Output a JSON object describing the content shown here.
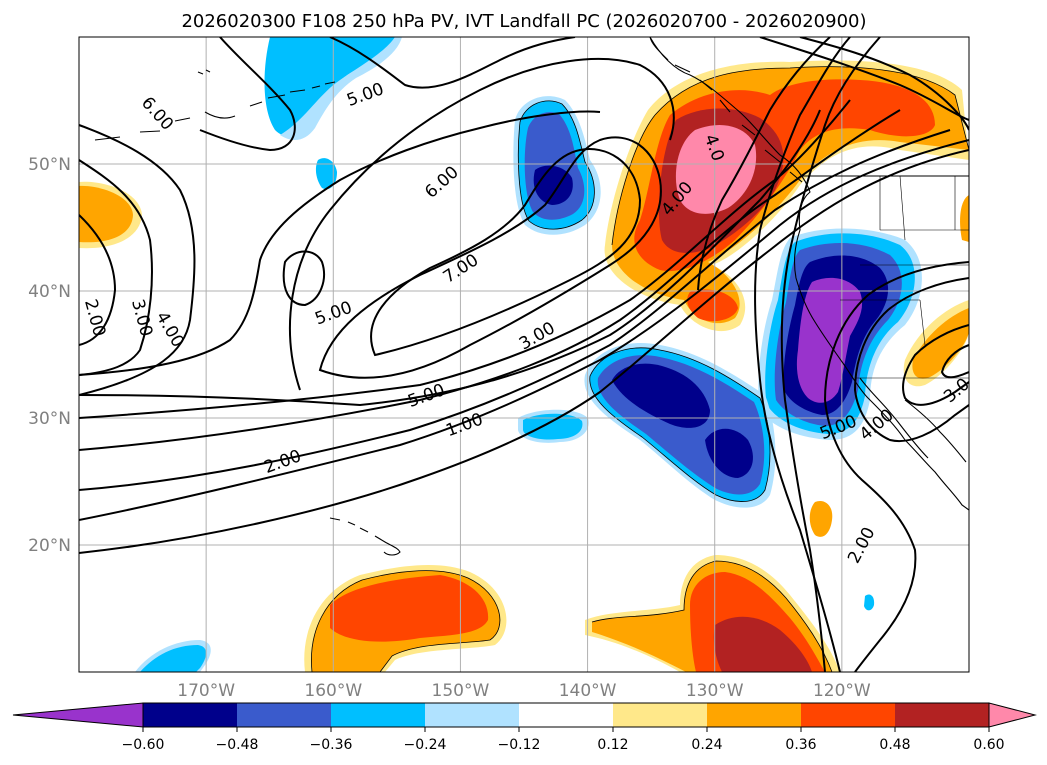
{
  "title": "2026020300 F108 250 hPa PV, IVT Landfall PC (2026020700 - 2026020900)",
  "map": {
    "lon_range": [
      -180,
      -110
    ],
    "lat_range": [
      10,
      60
    ],
    "lon_ticks": [
      {
        "value": -170,
        "label": "170°W"
      },
      {
        "value": -160,
        "label": "160°W"
      },
      {
        "value": -150,
        "label": "150°W"
      },
      {
        "value": -140,
        "label": "140°W"
      },
      {
        "value": -130,
        "label": "130°W"
      },
      {
        "value": -120,
        "label": "120°W"
      }
    ],
    "lat_ticks": [
      {
        "value": 20,
        "label": "20°N"
      },
      {
        "value": 30,
        "label": "30°N"
      },
      {
        "value": 40,
        "label": "40°N"
      },
      {
        "value": 50,
        "label": "50°N"
      }
    ],
    "gridlines": true,
    "coastlines": true
  },
  "colorbar": {
    "orientation": "horizontal",
    "extend": "both",
    "levels": [
      "-0.60",
      "-0.48",
      "-0.36",
      "-0.24",
      "-0.12",
      "0.12",
      "0.24",
      "0.36",
      "0.48",
      "0.60"
    ],
    "colors": [
      "#9933cc",
      "#00008b",
      "#3a5bcc",
      "#00bfff",
      "#b0e2ff",
      "#ffffff",
      "#ffe88a",
      "#ffa500",
      "#ff4500",
      "#b22222",
      "#ff88aa"
    ]
  },
  "contour_labels": [
    {
      "text": "6.00",
      "lon": -173.8,
      "lat": 54.0,
      "angle": 48
    },
    {
      "text": "5.00",
      "lon": -157.5,
      "lat": 55.5,
      "angle": -20
    },
    {
      "text": "6.00",
      "lon": -151.5,
      "lat": 48.6,
      "angle": -42
    },
    {
      "text": "7.00",
      "lon": -150.0,
      "lat": 41.8,
      "angle": -33
    },
    {
      "text": "5.00",
      "lon": -160.0,
      "lat": 38.3,
      "angle": -20
    },
    {
      "text": "3.00",
      "lon": -144.0,
      "lat": 36.5,
      "angle": -30
    },
    {
      "text": "5.00",
      "lon": -152.7,
      "lat": 31.8,
      "angle": -20
    },
    {
      "text": "1.00",
      "lon": -149.7,
      "lat": 29.5,
      "angle": -20
    },
    {
      "text": "2.00",
      "lon": -164.0,
      "lat": 26.6,
      "angle": -20
    },
    {
      "text": "2.00",
      "lon": -178.7,
      "lat": 37.9,
      "angle": 75
    },
    {
      "text": "3.00",
      "lon": -175.0,
      "lat": 37.9,
      "angle": 75
    },
    {
      "text": "4.00",
      "lon": -172.8,
      "lat": 37.0,
      "angle": 60
    },
    {
      "text": "4.00",
      "lon": -133.0,
      "lat": 47.3,
      "angle": -50
    },
    {
      "text": "4.0",
      "lon": -130.0,
      "lat": 51.3,
      "angle": 70
    },
    {
      "text": "5.00",
      "lon": -120.3,
      "lat": 29.3,
      "angle": -22
    },
    {
      "text": "4.00",
      "lon": -117.3,
      "lat": 29.5,
      "angle": -40
    },
    {
      "text": "3.0",
      "lon": -111.0,
      "lat": 32.2,
      "angle": -40
    },
    {
      "text": "2.00",
      "lon": -118.5,
      "lat": 20.0,
      "angle": -62
    }
  ],
  "chart_data": {
    "type": "heatmap",
    "title": "2026020300 F108 250 hPa PV, IVT Landfall PC (2026020700 - 2026020900)",
    "fields": {
      "filled": "IVT Landfall PC",
      "contours": "250 hPa PV"
    },
    "x_range": [
      -180,
      -110
    ],
    "y_range": [
      10,
      60
    ],
    "x_ticks": [
      "170°W",
      "160°W",
      "150°W",
      "140°W",
      "130°W",
      "120°W"
    ],
    "y_ticks": [
      "20°N",
      "30°N",
      "40°N",
      "50°N"
    ],
    "color_levels": [
      -0.6,
      -0.48,
      -0.36,
      -0.24,
      -0.12,
      0.12,
      0.24,
      0.36,
      0.48,
      0.6
    ],
    "pv_contour_levels": [
      1.0,
      2.0,
      3.0,
      4.0,
      5.0,
      6.0,
      7.0
    ],
    "anomaly_regions": [
      {
        "sign": "positive",
        "center_lon": -130,
        "center_lat": 47,
        "peak": 0.6
      },
      {
        "sign": "positive",
        "center_lon": -123,
        "center_lat": 54,
        "peak": 0.36
      },
      {
        "sign": "positive",
        "center_lon": -128,
        "center_lat": 14,
        "peak": 0.48
      },
      {
        "sign": "positive",
        "center_lon": -155,
        "center_lat": 14,
        "peak": 0.36
      },
      {
        "sign": "positive",
        "center_lon": -178,
        "center_lat": 46,
        "peak": 0.24
      },
      {
        "sign": "negative",
        "center_lon": -121,
        "center_lat": 36,
        "peak": -0.6
      },
      {
        "sign": "negative",
        "center_lon": -137,
        "center_lat": 32,
        "peak": -0.48
      },
      {
        "sign": "negative",
        "center_lon": -144,
        "center_lat": 48,
        "peak": -0.48
      },
      {
        "sign": "negative",
        "center_lon": -162,
        "center_lat": 56,
        "peak": -0.24
      }
    ]
  }
}
